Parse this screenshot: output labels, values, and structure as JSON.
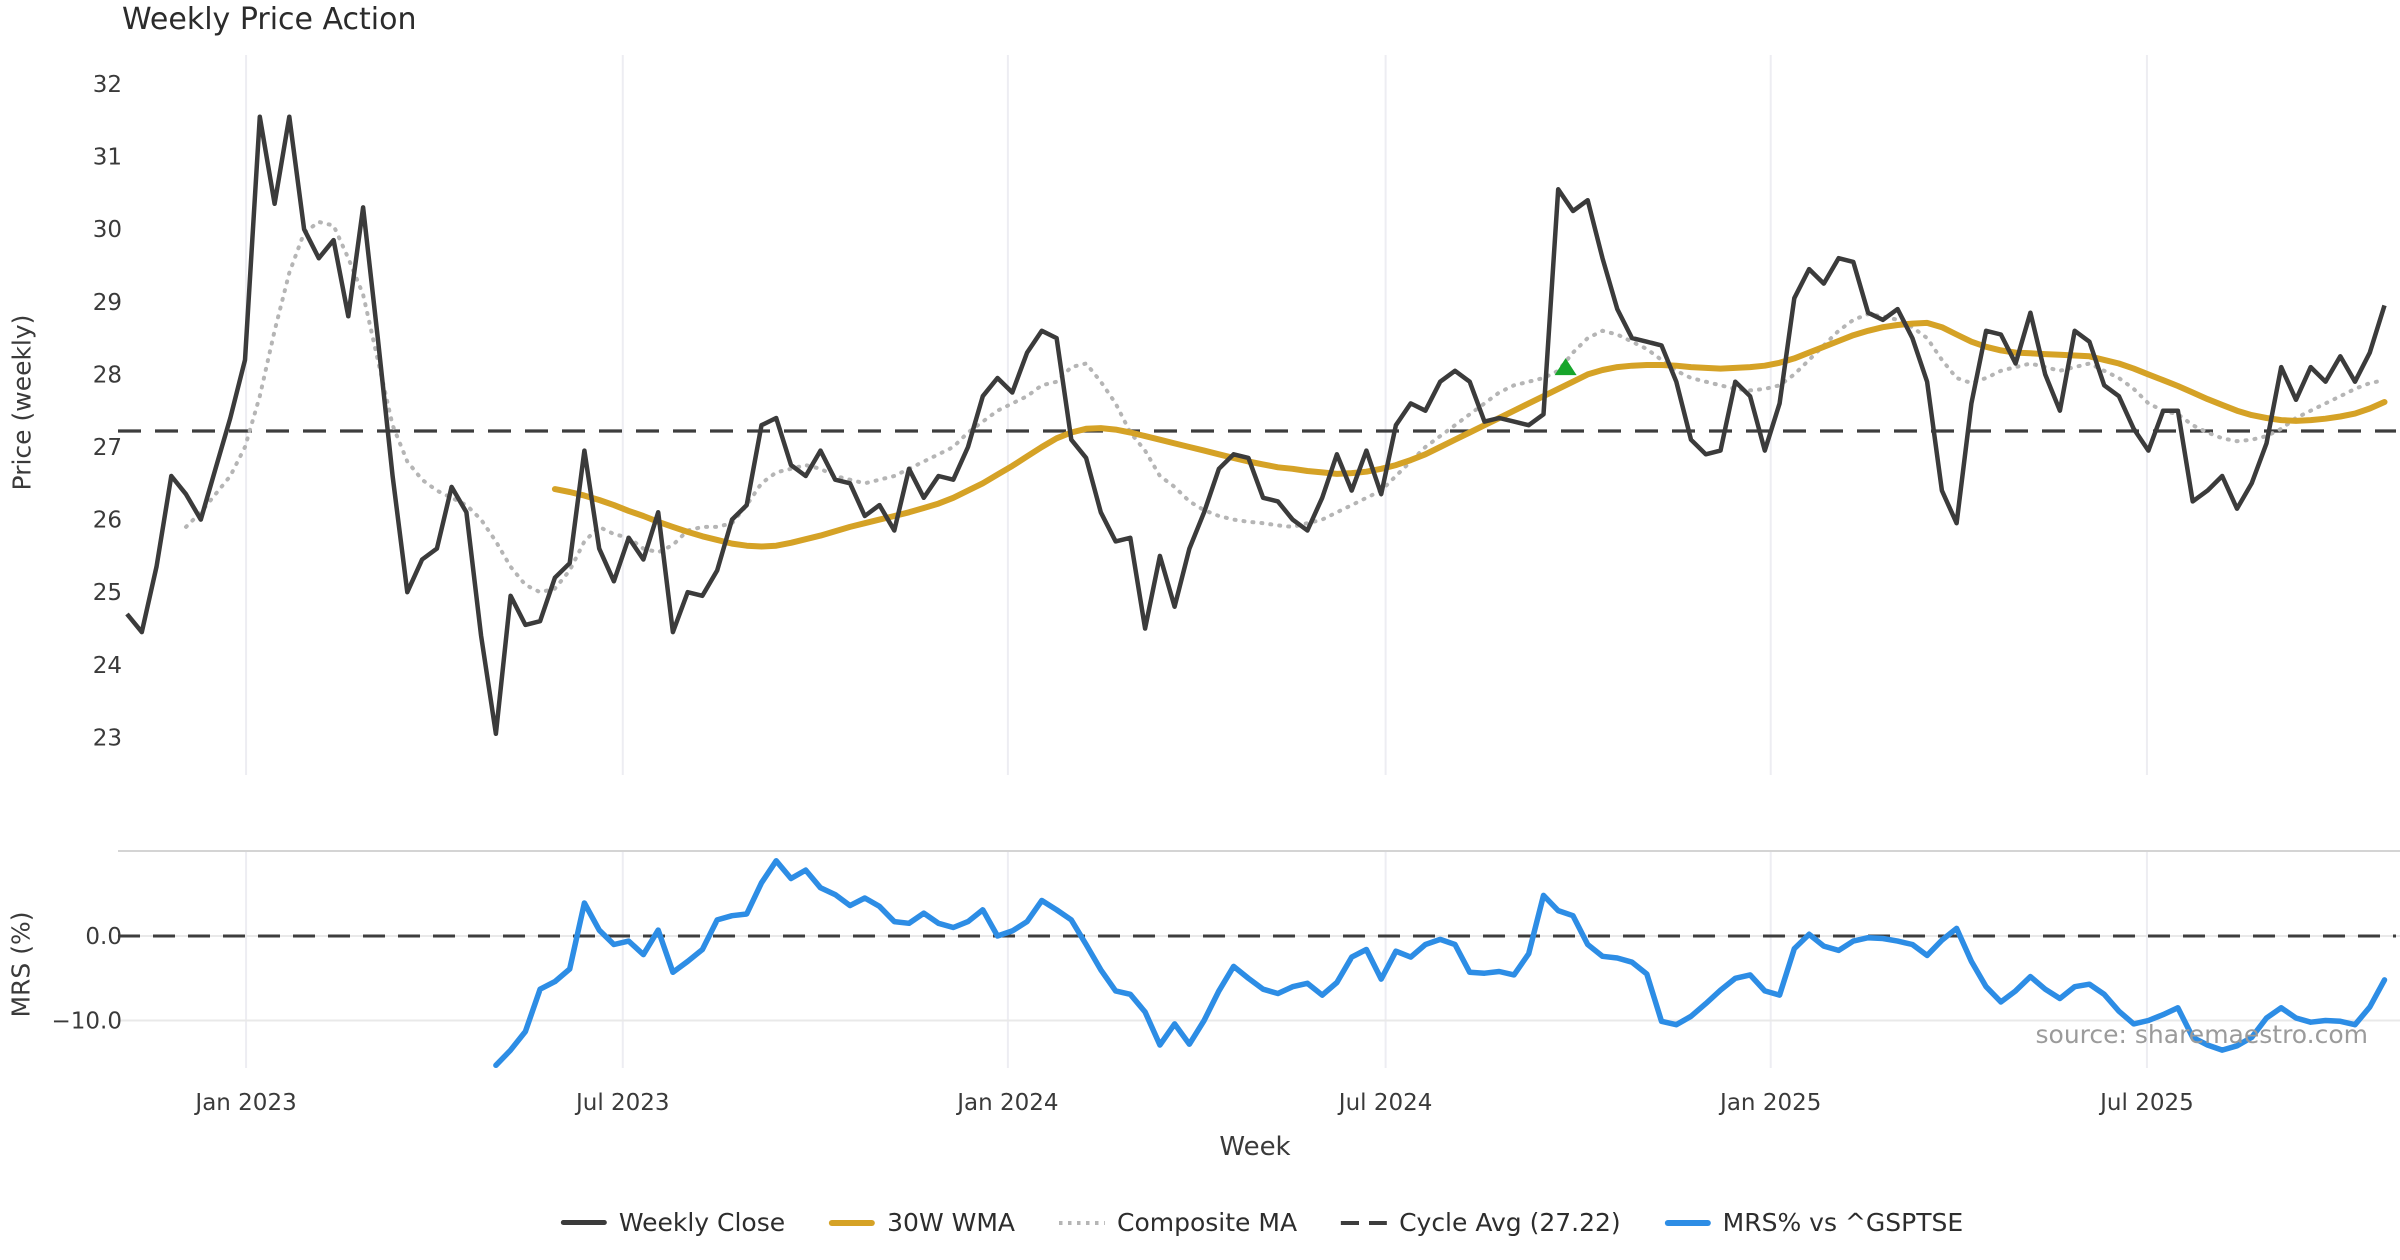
{
  "title": "Weekly Price Action",
  "source_note": "source: sharemaestro.com",
  "colors": {
    "close": "#3b3b3b",
    "wma": "#d5a226",
    "composite": "#b5b5b5",
    "cycle_avg": "#3d3d3d",
    "mrs": "#2d8de5",
    "marker": "#17a52b",
    "grid_vertical": "#ededf2",
    "panel_grid": "#e9e9e9",
    "panel_spine": "#d4d4d4",
    "tick_text": "#3a3a3a"
  },
  "legend": {
    "items": [
      {
        "key": "close",
        "label": "Weekly Close",
        "style": "solid"
      },
      {
        "key": "wma",
        "label": "30W WMA",
        "style": "solid"
      },
      {
        "key": "composite",
        "label": "Composite MA",
        "style": "dotted"
      },
      {
        "key": "cycle_avg",
        "label": "Cycle Avg (27.22)",
        "style": "dashed"
      },
      {
        "key": "mrs",
        "label": "MRS% vs ^GSPTSE",
        "style": "solid"
      }
    ]
  },
  "chart_data": [
    {
      "type": "line",
      "panel": "price",
      "title": "Weekly Price Action",
      "ylabel": "Price (weekly)",
      "xlabel": "Week",
      "ylim": [
        23,
        32
      ],
      "yticks": [
        32,
        31,
        30,
        29,
        28,
        27,
        26,
        25,
        24,
        23
      ],
      "x_ticks": [
        {
          "label": "Jan 2023",
          "week": 8.07
        },
        {
          "label": "Jul 2023",
          "week": 33.6
        },
        {
          "label": "Jan 2024",
          "week": 59.7
        },
        {
          "label": "Jul 2024",
          "week": 85.3
        },
        {
          "label": "Jan 2025",
          "week": 111.4
        },
        {
          "label": "Jul 2025",
          "week": 136.9
        }
      ],
      "cycle_avg": 27.22,
      "signal_marker": {
        "week": 97.5,
        "price": 28.1,
        "shape": "triangle-up",
        "color_key": "marker"
      },
      "series": [
        {
          "name": "Weekly Close",
          "color_key": "close",
          "style": "solid",
          "start_week": 0,
          "values": [
            24.7,
            24.45,
            25.35,
            26.6,
            26.35,
            26.0,
            26.7,
            27.4,
            28.2,
            31.55,
            30.35,
            31.55,
            30.0,
            29.6,
            29.85,
            28.8,
            30.3,
            28.5,
            26.6,
            25.0,
            25.45,
            25.6,
            26.45,
            26.1,
            24.4,
            23.05,
            24.95,
            24.55,
            24.6,
            25.2,
            25.4,
            26.95,
            25.6,
            25.15,
            25.75,
            25.45,
            26.1,
            24.45,
            25.0,
            24.95,
            25.3,
            26.0,
            26.2,
            27.3,
            27.4,
            26.75,
            26.6,
            26.95,
            26.55,
            26.5,
            26.05,
            26.2,
            25.85,
            26.7,
            26.3,
            26.6,
            26.55,
            27.0,
            27.7,
            27.95,
            27.75,
            28.3,
            28.6,
            28.5,
            27.1,
            26.85,
            26.1,
            25.7,
            25.75,
            24.5,
            25.5,
            24.8,
            25.6,
            26.1,
            26.7,
            26.9,
            26.85,
            26.3,
            26.25,
            26.0,
            25.85,
            26.3,
            26.9,
            26.4,
            26.95,
            26.35,
            27.3,
            27.6,
            27.5,
            27.9,
            28.05,
            27.9,
            27.35,
            27.4,
            27.35,
            27.3,
            27.45,
            30.55,
            30.25,
            30.4,
            29.6,
            28.9,
            28.5,
            28.45,
            28.4,
            27.9,
            27.1,
            26.9,
            26.95,
            27.9,
            27.7,
            26.95,
            27.6,
            29.05,
            29.45,
            29.25,
            29.6,
            29.55,
            28.85,
            28.75,
            28.9,
            28.5,
            27.9,
            26.4,
            25.95,
            27.6,
            28.6,
            28.55,
            28.15,
            28.85,
            28.0,
            27.5,
            28.6,
            28.45,
            27.85,
            27.7,
            27.25,
            26.95,
            27.5,
            27.5,
            26.25,
            26.4,
            26.6,
            26.15,
            26.5,
            27.05,
            28.1,
            27.65,
            28.1,
            27.9,
            28.25,
            27.9,
            28.3,
            28.95
          ]
        },
        {
          "name": "30W WMA",
          "color_key": "wma",
          "style": "solid",
          "start_week": 29,
          "values": [
            26.42,
            26.38,
            26.33,
            26.27,
            26.2,
            26.12,
            26.05,
            25.97,
            25.9,
            25.83,
            25.77,
            25.72,
            25.67,
            25.64,
            25.63,
            25.64,
            25.68,
            25.73,
            25.78,
            25.84,
            25.9,
            25.95,
            26.0,
            26.05,
            26.1,
            26.16,
            26.22,
            26.3,
            26.4,
            26.5,
            26.62,
            26.74,
            26.87,
            27.0,
            27.12,
            27.2,
            27.25,
            27.26,
            27.24,
            27.2,
            27.15,
            27.1,
            27.05,
            27.0,
            26.95,
            26.9,
            26.85,
            26.8,
            26.76,
            26.72,
            26.7,
            26.67,
            26.65,
            26.63,
            26.64,
            26.66,
            26.7,
            26.75,
            26.82,
            26.9,
            27.0,
            27.1,
            27.2,
            27.3,
            27.4,
            27.5,
            27.6,
            27.7,
            27.8,
            27.9,
            28.0,
            28.06,
            28.1,
            28.12,
            28.13,
            28.13,
            28.12,
            28.1,
            28.09,
            28.08,
            28.09,
            28.1,
            28.12,
            28.16,
            28.22,
            28.3,
            28.38,
            28.46,
            28.54,
            28.6,
            28.65,
            28.68,
            28.7,
            28.71,
            28.65,
            28.55,
            28.45,
            28.38,
            28.33,
            28.3,
            28.29,
            28.28,
            28.27,
            28.26,
            28.25,
            28.2,
            28.15,
            28.08,
            28.0,
            27.92,
            27.84,
            27.75,
            27.66,
            27.58,
            27.5,
            27.44,
            27.4,
            27.37,
            27.36,
            27.37,
            27.39,
            27.42,
            27.46,
            27.53,
            27.62
          ]
        },
        {
          "name": "Composite MA",
          "color_key": "composite",
          "style": "dotted",
          "start_week": 4,
          "values": [
            25.9,
            26.1,
            26.35,
            26.6,
            27.0,
            27.7,
            28.6,
            29.4,
            29.95,
            30.1,
            30.05,
            29.6,
            29.1,
            28.2,
            27.3,
            26.8,
            26.55,
            26.4,
            26.3,
            26.2,
            26.0,
            25.7,
            25.35,
            25.1,
            25.0,
            25.05,
            25.3,
            25.7,
            25.9,
            25.8,
            25.75,
            25.6,
            25.55,
            25.65,
            25.85,
            25.9,
            25.9,
            25.95,
            26.2,
            26.5,
            26.65,
            26.7,
            26.75,
            26.7,
            26.6,
            26.55,
            26.5,
            26.55,
            26.6,
            26.7,
            26.8,
            26.9,
            27.0,
            27.2,
            27.35,
            27.5,
            27.6,
            27.7,
            27.85,
            27.9,
            28.1,
            28.15,
            27.9,
            27.6,
            27.2,
            26.95,
            26.6,
            26.45,
            26.25,
            26.13,
            26.05,
            26.0,
            25.97,
            25.95,
            25.92,
            25.9,
            25.95,
            26.0,
            26.1,
            26.2,
            26.3,
            26.4,
            26.6,
            26.8,
            27.0,
            27.15,
            27.3,
            27.45,
            27.6,
            27.75,
            27.85,
            27.9,
            27.95,
            28.05,
            28.3,
            28.5,
            28.6,
            28.55,
            28.45,
            28.35,
            28.2,
            28.05,
            27.95,
            27.9,
            27.85,
            27.8,
            27.78,
            27.8,
            27.85,
            28.0,
            28.2,
            28.4,
            28.6,
            28.75,
            28.83,
            28.8,
            28.75,
            28.65,
            28.5,
            28.2,
            27.95,
            27.88,
            27.95,
            28.05,
            28.1,
            28.15,
            28.1,
            28.05,
            28.1,
            28.15,
            28.05,
            27.95,
            27.8,
            27.6,
            27.5,
            27.45,
            27.3,
            27.2,
            27.12,
            27.08,
            27.1,
            27.15,
            27.25,
            27.4,
            27.5,
            27.6,
            27.7,
            27.8,
            27.88,
            27.92
          ]
        }
      ]
    },
    {
      "type": "line",
      "panel": "mrs",
      "ylabel": "MRS (%)",
      "ylim": [
        -15.5,
        9.8
      ],
      "yticks": [
        {
          "label": "0.0",
          "value": 0
        },
        {
          "label": "−10.0",
          "value": -10
        }
      ],
      "zero_line": 0,
      "series": [
        {
          "name": "MRS% vs ^GSPTSE",
          "color_key": "mrs",
          "style": "solid",
          "start_week": 25,
          "values": [
            -15.3,
            -13.5,
            -11.3,
            -6.3,
            -5.4,
            -3.9,
            3.9,
            0.7,
            -1.0,
            -0.6,
            -2.2,
            0.7,
            -4.3,
            -3.0,
            -1.6,
            1.9,
            2.4,
            2.6,
            6.3,
            8.9,
            6.8,
            7.8,
            5.7,
            4.9,
            3.6,
            4.5,
            3.5,
            1.7,
            1.5,
            2.7,
            1.5,
            1.0,
            1.7,
            3.1,
            0.0,
            0.6,
            1.7,
            4.2,
            3.1,
            1.9,
            -1.0,
            -4.0,
            -6.5,
            -6.9,
            -9.0,
            -12.9,
            -10.4,
            -12.8,
            -10.0,
            -6.5,
            -3.6,
            -5.0,
            -6.3,
            -6.8,
            -6.0,
            -5.6,
            -7.0,
            -5.5,
            -2.5,
            -1.6,
            -5.1,
            -1.8,
            -2.5,
            -1.0,
            -0.4,
            -1.0,
            -4.3,
            -4.4,
            -4.2,
            -4.6,
            -2.1,
            4.8,
            3.0,
            2.4,
            -1.0,
            -2.4,
            -2.6,
            -3.1,
            -4.5,
            -10.1,
            -10.5,
            -9.5,
            -8.0,
            -6.4,
            -5.0,
            -4.6,
            -6.5,
            -7.0,
            -1.5,
            0.2,
            -1.2,
            -1.7,
            -0.6,
            -0.2,
            -0.3,
            -0.6,
            -1.0,
            -2.3,
            -0.5,
            0.9,
            -3.0,
            -6.0,
            -7.8,
            -6.5,
            -4.8,
            -6.3,
            -7.4,
            -6.0,
            -5.7,
            -6.9,
            -8.9,
            -10.4,
            -10.0,
            -9.3,
            -8.5,
            -12.0,
            -12.9,
            -13.5,
            -13.0,
            -12.0,
            -9.7,
            -8.5,
            -9.7,
            -10.2,
            -10.0,
            -10.1,
            -10.5,
            -8.4,
            -5.2
          ]
        }
      ]
    }
  ]
}
